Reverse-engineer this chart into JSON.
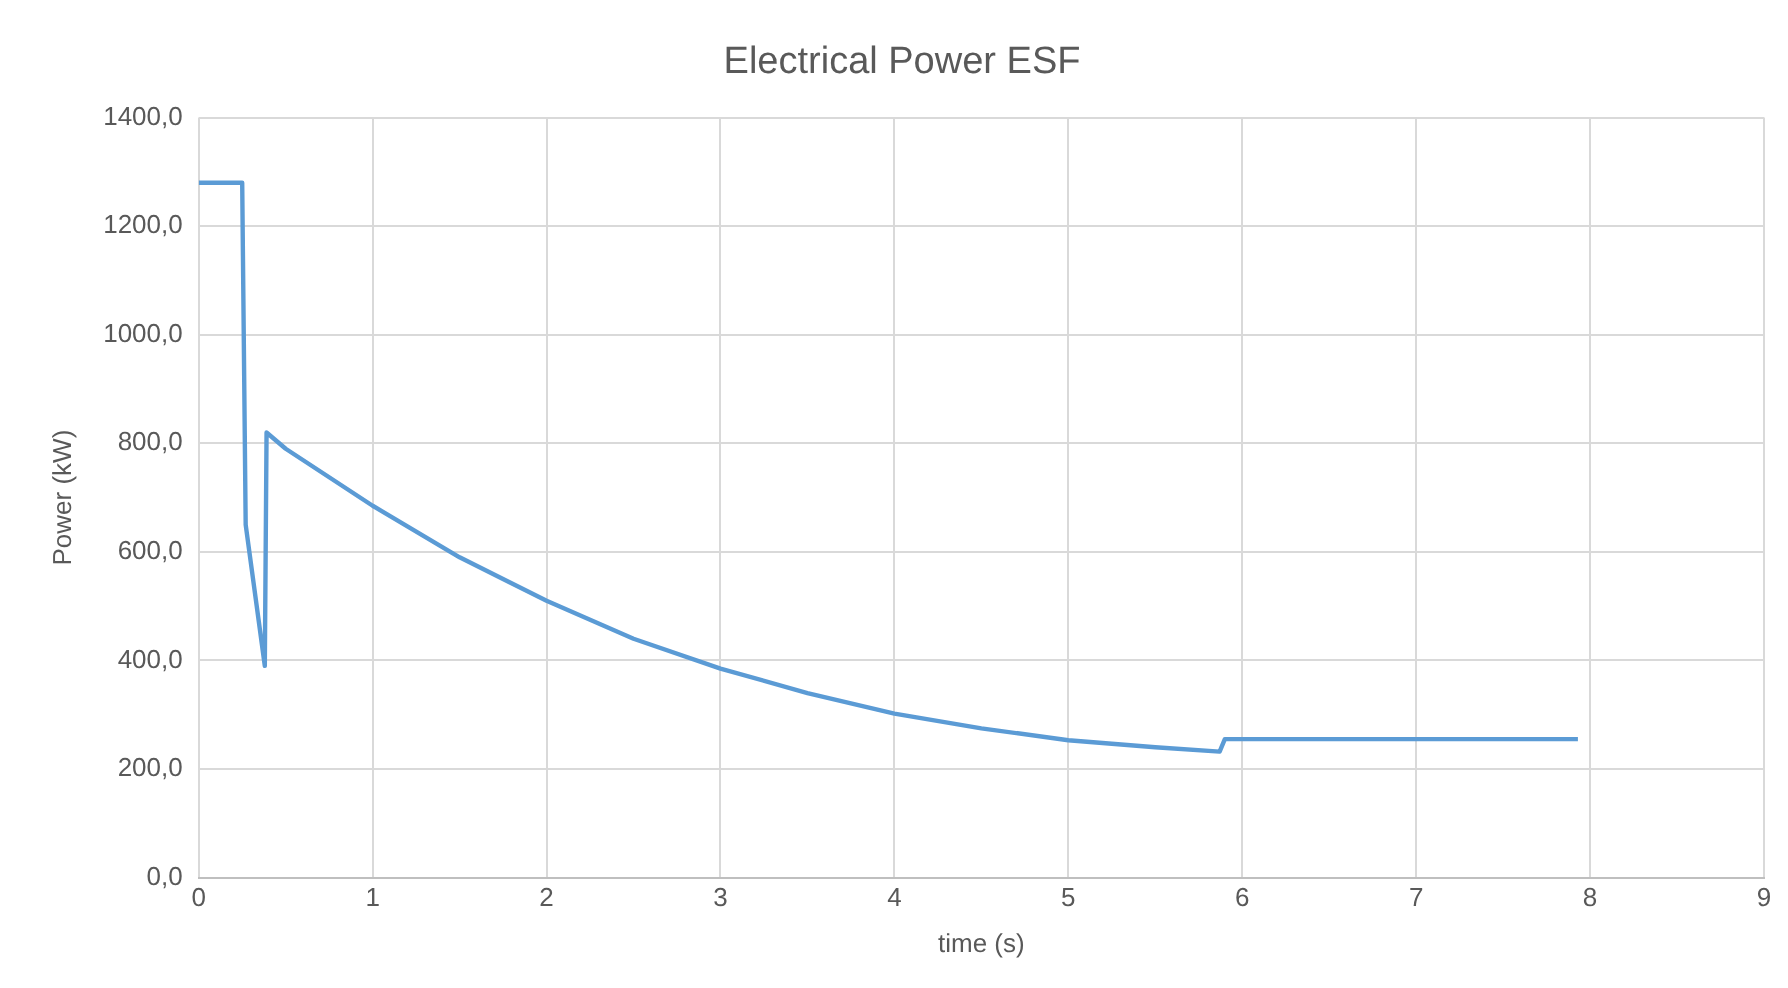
{
  "chart_data": {
    "type": "line",
    "title": "Electrical Power ESF",
    "xlabel": "time (s)",
    "ylabel": "Power (kW)",
    "x": [
      0,
      0.25,
      0.27,
      0.38,
      0.39,
      0.5,
      1,
      1.5,
      2,
      2.5,
      3,
      3.5,
      4,
      4.5,
      5,
      5.5,
      5.87,
      5.9,
      7.93
    ],
    "series": [
      {
        "color": "#5b9bd5",
        "values": [
          1280,
          1280,
          650,
          390,
          820,
          790,
          685,
          590,
          510,
          440,
          385,
          340,
          302,
          275,
          253,
          240,
          232,
          255,
          255
        ]
      }
    ],
    "xlim": [
      0,
      9
    ],
    "xticks": [
      0,
      1,
      2,
      3,
      4,
      5,
      6,
      7,
      8,
      9
    ],
    "ylim": [
      0,
      1400
    ],
    "yticks": [
      {
        "value": 0,
        "label": "0,0"
      },
      {
        "value": 200,
        "label": "200,0"
      },
      {
        "value": 400,
        "label": "400,0"
      },
      {
        "value": 600,
        "label": "600,0"
      },
      {
        "value": 800,
        "label": "800,0"
      },
      {
        "value": 1000,
        "label": "1000,0"
      },
      {
        "value": 1200,
        "label": "1200,0"
      },
      {
        "value": 1400,
        "label": "1400,0"
      }
    ],
    "grid": true,
    "marker": "none",
    "line_style": "solid"
  }
}
